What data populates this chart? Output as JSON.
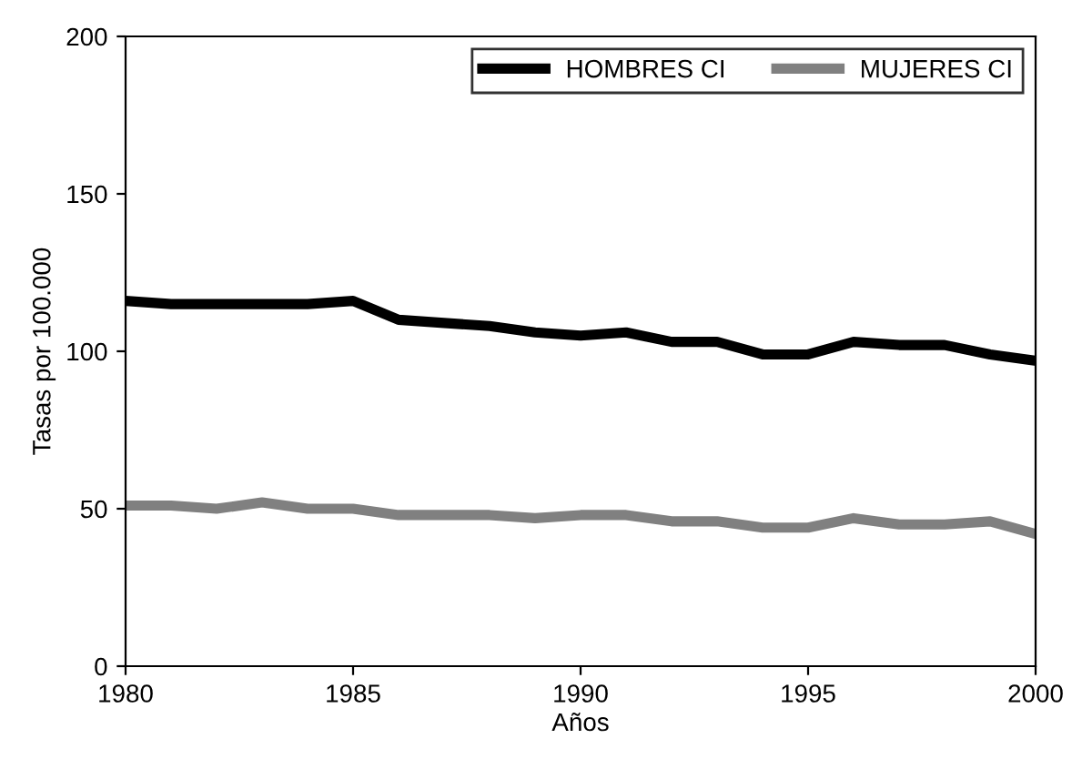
{
  "chart_data": {
    "type": "line",
    "xlabel": "Años",
    "ylabel": "Tasas por 100.000",
    "x": [
      1980,
      1981,
      1982,
      1983,
      1984,
      1985,
      1986,
      1987,
      1988,
      1989,
      1990,
      1991,
      1992,
      1993,
      1994,
      1995,
      1996,
      1997,
      1998,
      1999,
      2000
    ],
    "series": [
      {
        "name": "HOMBRES CI",
        "color": "#000000",
        "values": [
          116,
          115,
          115,
          115,
          115,
          116,
          110,
          109,
          108,
          106,
          105,
          106,
          103,
          103,
          99,
          99,
          103,
          102,
          102,
          99,
          97
        ]
      },
      {
        "name": "MUJERES CI",
        "color": "#808080",
        "values": [
          51,
          51,
          50,
          52,
          50,
          50,
          48,
          48,
          48,
          47,
          48,
          48,
          46,
          46,
          44,
          44,
          47,
          45,
          45,
          46,
          42
        ]
      }
    ],
    "xlim": [
      1980,
      2000
    ],
    "xticks": [
      1980,
      1985,
      1990,
      1995,
      2000
    ],
    "ylim": [
      0,
      200
    ],
    "yticks": [
      0,
      50,
      100,
      150,
      200
    ],
    "grid": false,
    "legend": "top right",
    "marker": "none",
    "line_style": "solid"
  }
}
